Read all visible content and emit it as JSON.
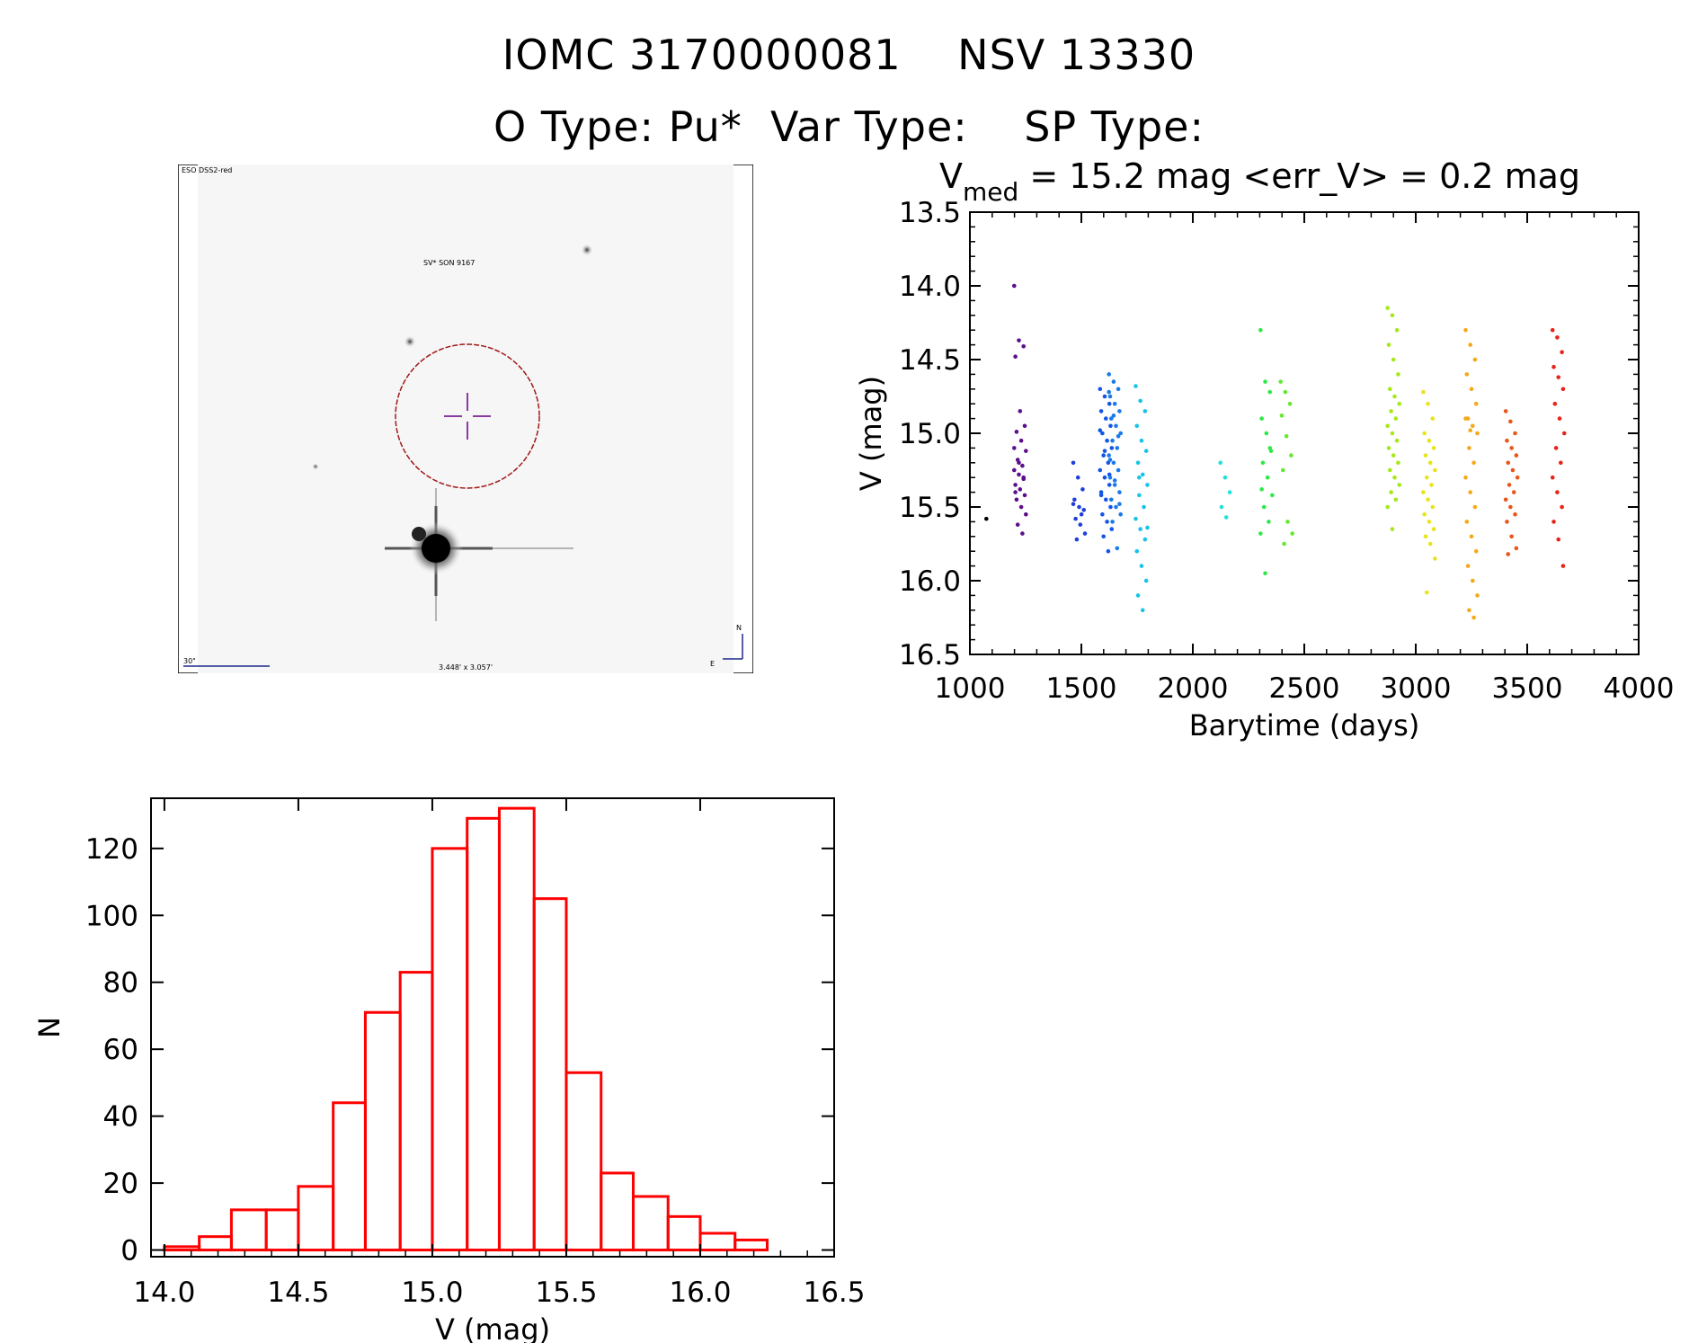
{
  "header": {
    "line1": "IOMC 3170000081    NSV 13330",
    "line2": "O Type: Pu*  Var Type:    SP Type:"
  },
  "finder": {
    "survey_label": "ESO DSS2-red",
    "object_label": "SV* SON 9167",
    "scale_label": "30\"",
    "fov_label": "3.448' x 3.057'",
    "north_label": "N",
    "east_label": "E"
  },
  "chart_data": [
    {
      "type": "scatter",
      "title_main": "V",
      "title_sub": "med",
      "title_rest": " = 15.2 mag <err_V> = 0.2 mag",
      "xlabel": "Barytime (days)",
      "ylabel": "V (mag)",
      "xlim": [
        1000,
        4000
      ],
      "ylim": [
        16.5,
        13.5
      ],
      "y_inverted": true,
      "xticks": [
        1000,
        1500,
        2000,
        2500,
        3000,
        3500,
        4000
      ],
      "yticks": [
        "13.5",
        "14.0",
        "14.5",
        "15.0",
        "15.5",
        "16.0",
        "16.5"
      ],
      "grid": false,
      "seasons": [
        {
          "x": 1100,
          "color": "#000000",
          "y": [
            15.58
          ]
        },
        {
          "x": 1225,
          "color": "#5b0f8c",
          "y": [
            14.0,
            14.37,
            14.41,
            14.48,
            14.85,
            14.95,
            14.99,
            15.05,
            15.12,
            15.18,
            15.22,
            15.25,
            15.28,
            15.31,
            15.35,
            15.38,
            15.42,
            15.45,
            15.5,
            15.55,
            15.62,
            15.68,
            15.1,
            15.2,
            15.3,
            15.4
          ]
        },
        {
          "x": 1490,
          "color": "#1f3fdd",
          "y": [
            15.2,
            15.3,
            15.38,
            15.45,
            15.5,
            15.52,
            15.58,
            15.62,
            15.68,
            15.72,
            15.55,
            15.48
          ]
        },
        {
          "x": 1610,
          "color": "#1455e6",
          "y": [
            14.7,
            14.75,
            14.8,
            14.85,
            14.9,
            14.95,
            15.0,
            15.05,
            15.1,
            15.15,
            15.2,
            15.25,
            15.3,
            15.35,
            15.4,
            15.45,
            15.5,
            15.55,
            15.6,
            15.65,
            15.7,
            15.8,
            14.98,
            15.12,
            15.28,
            15.42
          ]
        },
        {
          "x": 1650,
          "color": "#1a7ae8",
          "y": [
            14.6,
            14.65,
            14.7,
            14.75,
            14.8,
            14.85,
            14.9,
            14.95,
            15.0,
            15.05,
            15.1,
            15.15,
            15.2,
            15.25,
            15.3,
            15.35,
            15.4,
            15.45,
            15.5,
            15.55,
            15.6,
            15.78,
            14.72,
            14.88,
            15.02,
            15.18,
            15.32,
            15.48
          ]
        },
        {
          "x": 1770,
          "color": "#17c4e8",
          "y": [
            14.68,
            14.78,
            14.85,
            14.95,
            15.05,
            15.12,
            15.2,
            15.28,
            15.35,
            15.42,
            15.5,
            15.58,
            15.65,
            15.72,
            15.8,
            15.9,
            16.0,
            16.1,
            16.2,
            15.64,
            15.3
          ]
        },
        {
          "x": 2150,
          "color": "#22e2d8",
          "y": [
            15.2,
            15.3,
            15.4,
            15.5,
            15.57
          ]
        },
        {
          "x": 2330,
          "color": "#2ee84a",
          "y": [
            14.3,
            14.65,
            14.72,
            14.9,
            15.0,
            15.12,
            15.2,
            15.3,
            15.42,
            15.5,
            15.6,
            15.68,
            15.95,
            15.1,
            15.38
          ]
        },
        {
          "x": 2420,
          "color": "#66e830",
          "y": [
            14.65,
            14.72,
            14.8,
            14.88,
            15.02,
            15.15,
            15.25,
            15.6,
            15.68,
            15.75
          ]
        },
        {
          "x": 2900,
          "color": "#a6e81a",
          "y": [
            14.15,
            14.2,
            14.3,
            14.4,
            14.5,
            14.6,
            14.7,
            14.75,
            14.8,
            14.85,
            14.9,
            14.95,
            15.0,
            15.05,
            15.1,
            15.15,
            15.2,
            15.25,
            15.3,
            15.35,
            15.4,
            15.45,
            15.5,
            15.65
          ]
        },
        {
          "x": 3060,
          "color": "#e8e41a",
          "y": [
            14.72,
            14.8,
            14.9,
            15.0,
            15.05,
            15.1,
            15.15,
            15.2,
            15.25,
            15.3,
            15.35,
            15.4,
            15.45,
            15.5,
            15.55,
            15.6,
            15.65,
            15.7,
            15.75,
            15.85,
            16.08
          ]
        },
        {
          "x": 3250,
          "color": "#f5a81a",
          "y": [
            14.3,
            14.4,
            14.5,
            14.6,
            14.7,
            14.8,
            14.9,
            14.95,
            15.0,
            15.1,
            15.2,
            15.3,
            15.4,
            15.5,
            15.6,
            15.7,
            15.8,
            15.9,
            16.0,
            16.1,
            16.2,
            16.25,
            14.9,
            14.98
          ]
        },
        {
          "x": 3430,
          "color": "#e8561a",
          "y": [
            14.85,
            14.92,
            15.0,
            15.05,
            15.1,
            15.15,
            15.2,
            15.25,
            15.3,
            15.35,
            15.4,
            15.45,
            15.5,
            15.55,
            15.6,
            15.7,
            15.78,
            15.82
          ]
        },
        {
          "x": 3640,
          "color": "#e8231a",
          "y": [
            14.3,
            14.35,
            14.45,
            14.55,
            14.62,
            14.7,
            14.8,
            14.9,
            15.0,
            15.1,
            15.2,
            15.3,
            15.4,
            15.5,
            15.6,
            15.72,
            15.9
          ]
        }
      ]
    },
    {
      "type": "bar",
      "xlabel": "V (mag)",
      "ylabel": "N",
      "xlim": [
        13.95,
        16.5
      ],
      "ylim": [
        -2,
        135
      ],
      "xticks": [
        "14.0",
        "14.5",
        "15.0",
        "15.5",
        "16.0",
        "16.5"
      ],
      "yticks": [
        "0",
        "20",
        "40",
        "60",
        "80",
        "100",
        "120"
      ],
      "bar_color": "#ff0000",
      "bins": [
        {
          "x0": 14.0,
          "x1": 14.13,
          "n": 1
        },
        {
          "x0": 14.13,
          "x1": 14.25,
          "n": 4
        },
        {
          "x0": 14.25,
          "x1": 14.38,
          "n": 12
        },
        {
          "x0": 14.38,
          "x1": 14.5,
          "n": 12
        },
        {
          "x0": 14.5,
          "x1": 14.63,
          "n": 19
        },
        {
          "x0": 14.63,
          "x1": 14.75,
          "n": 44
        },
        {
          "x0": 14.75,
          "x1": 14.88,
          "n": 71
        },
        {
          "x0": 14.88,
          "x1": 15.0,
          "n": 83
        },
        {
          "x0": 15.0,
          "x1": 15.13,
          "n": 120
        },
        {
          "x0": 15.13,
          "x1": 15.25,
          "n": 129
        },
        {
          "x0": 15.25,
          "x1": 15.38,
          "n": 132
        },
        {
          "x0": 15.38,
          "x1": 15.5,
          "n": 105
        },
        {
          "x0": 15.5,
          "x1": 15.63,
          "n": 53
        },
        {
          "x0": 15.63,
          "x1": 15.75,
          "n": 23
        },
        {
          "x0": 15.75,
          "x1": 15.88,
          "n": 16
        },
        {
          "x0": 15.88,
          "x1": 16.0,
          "n": 10
        },
        {
          "x0": 16.0,
          "x1": 16.13,
          "n": 5
        },
        {
          "x0": 16.13,
          "x1": 16.25,
          "n": 3
        }
      ]
    }
  ]
}
